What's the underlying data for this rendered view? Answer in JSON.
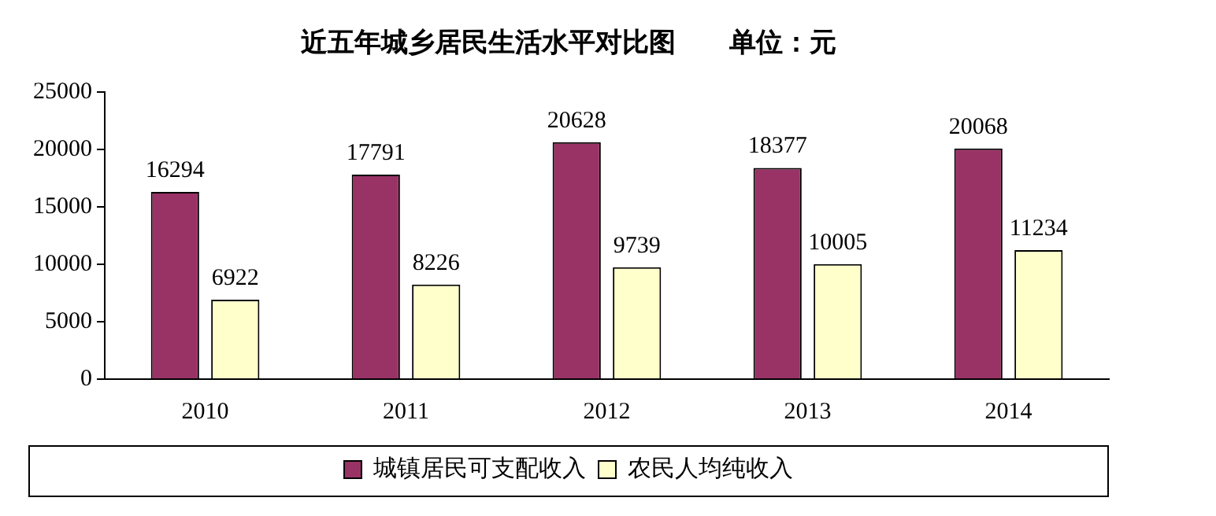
{
  "chart_data": {
    "type": "bar",
    "title": "近五年城乡居民生活水平对比图　　单位：元",
    "categories": [
      "2010",
      "2011",
      "2012",
      "2013",
      "2014"
    ],
    "series": [
      {
        "name": "城镇居民可支配收入",
        "color": "#993366",
        "values": [
          16294,
          17791,
          20628,
          18377,
          20068
        ]
      },
      {
        "name": "农民人均纯收入",
        "color": "#ffffcc",
        "values": [
          6922,
          8226,
          9739,
          10005,
          11234
        ]
      }
    ],
    "ylim": [
      0,
      25000
    ],
    "yticks": [
      0,
      5000,
      10000,
      15000,
      20000,
      25000
    ],
    "grid": false,
    "legend": "bottom",
    "data_labels": true
  }
}
